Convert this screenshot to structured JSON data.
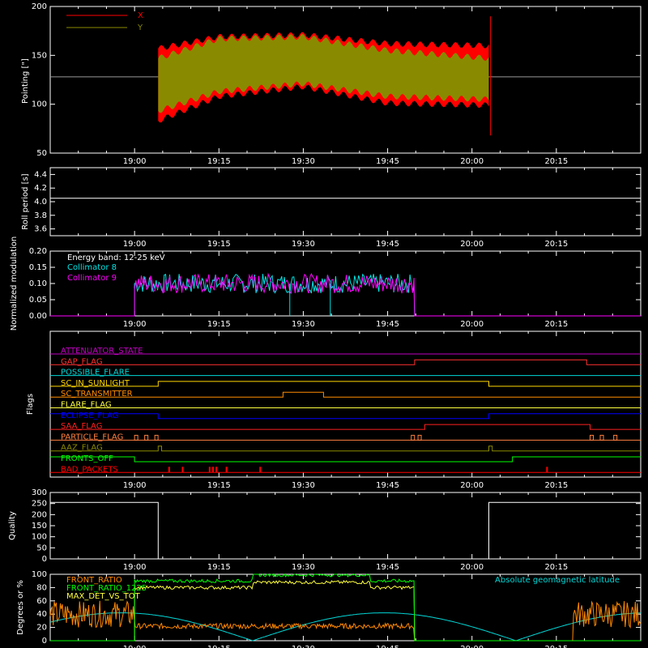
{
  "colors": {
    "background": "#000000",
    "frame": "#ffffff",
    "x_series": "#ff0000",
    "y_series": "#8a8a00",
    "collimator8": "#00e5e5",
    "collimator9": "#ff00ff",
    "attenuator": "#c000c0",
    "gap": "#ff3030",
    "possible_flare": "#00d8d8",
    "sc_in_sunlight": "#ffd700",
    "sc_transmitter": "#ff8c00",
    "flare_flag": "#ffff40",
    "eclipse": "#0000ff",
    "saa": "#ff2020",
    "particle": "#ff8040",
    "aaz": "#8a8a00",
    "fronts_off": "#00ff00",
    "bad_packets": "#ff0000",
    "front_ratio": "#ff8800",
    "front_ratio_1225": "#00ff00",
    "max_det": "#ffff40",
    "geomag": "#00d8d8"
  },
  "chart_data": [
    {
      "type": "line",
      "id": "pointing",
      "ylabel": "Pointing [\"]",
      "ylim": [
        50,
        200
      ],
      "y_ticks": [
        "50",
        "100",
        "150",
        "200"
      ],
      "x_ticks": [
        "19:00",
        "19:15",
        "19:30",
        "19:45",
        "20:00",
        "20:15"
      ],
      "legend": [
        {
          "name": "X",
          "color": "#ff0000"
        },
        {
          "name": "Y",
          "color": "#8a8a00"
        }
      ],
      "series": [
        {
          "name": "X",
          "envelope_upper": [
            [
              19.07,
              160
            ],
            [
              19.25,
              172
            ],
            [
              19.5,
              174
            ],
            [
              19.75,
              165
            ],
            [
              20.05,
              163
            ]
          ],
          "envelope_lower": [
            [
              19.07,
              80
            ],
            [
              19.25,
              105
            ],
            [
              19.5,
              115
            ],
            [
              19.75,
              98
            ],
            [
              20.05,
              96
            ]
          ]
        },
        {
          "name": "Y",
          "envelope_upper": [
            [
              19.07,
              150
            ],
            [
              19.25,
              170
            ],
            [
              19.5,
              172
            ],
            [
              19.75,
              158
            ],
            [
              20.05,
              150
            ]
          ],
          "envelope_lower": [
            [
              19.07,
              90
            ],
            [
              19.25,
              110
            ],
            [
              19.5,
              118
            ],
            [
              19.75,
              105
            ],
            [
              20.05,
              102
            ]
          ]
        }
      ],
      "reference_line": 128
    },
    {
      "type": "line",
      "id": "roll",
      "ylabel": "Roll period [s]",
      "ylim": [
        3.5,
        4.5
      ],
      "y_ticks": [
        "3.6",
        "3.8",
        "4.0",
        "4.2",
        "4.4"
      ],
      "x_ticks": [
        "19:00",
        "19:15",
        "19:30",
        "19:45",
        "20:00",
        "20:15"
      ],
      "values_constant": 4.05
    },
    {
      "type": "line",
      "id": "modulation",
      "ylabel": "Normalized modulation",
      "ylim": [
        0,
        0.2
      ],
      "y_ticks": [
        "0.00",
        "0.05",
        "0.10",
        "0.15",
        "0.20"
      ],
      "x_ticks": [
        "19:00",
        "19:15",
        "19:30",
        "19:45",
        "20:00",
        "20:15"
      ],
      "annotations": [
        "Energy band: 12-25 keV"
      ],
      "series": [
        {
          "name": "Collimator 8",
          "mean": 0.1,
          "start": 19.0,
          "end": 19.83
        },
        {
          "name": "Collimator 9",
          "mean": 0.1,
          "start": 19.0,
          "end": 19.83
        }
      ]
    },
    {
      "type": "line",
      "id": "flags",
      "ylabel": "Flags",
      "x_ticks": [
        "19:00",
        "19:15",
        "19:30",
        "19:45",
        "20:00",
        "20:15"
      ],
      "flags": [
        {
          "name": "ATTENUATOR_STATE",
          "color": "#c000c0"
        },
        {
          "name": "GAP_FLAG",
          "color": "#ff3030"
        },
        {
          "name": "POSSIBLE_FLARE",
          "color": "#00d8d8"
        },
        {
          "name": "SC_IN_SUNLIGHT",
          "color": "#ffd700"
        },
        {
          "name": "SC_TRANSMITTER",
          "color": "#ff8c00"
        },
        {
          "name": "FLARE_FLAG",
          "color": "#ffff40"
        },
        {
          "name": "ECLIPSE_FLAG",
          "color": "#0000ff"
        },
        {
          "name": "SAA_FLAG",
          "color": "#ff2020"
        },
        {
          "name": "PARTICLE_FLAG",
          "color": "#ff8040"
        },
        {
          "name": "AAZ_FLAG",
          "color": "#8a8a00"
        },
        {
          "name": "FRONTS_OFF",
          "color": "#00ff00"
        },
        {
          "name": "BAD_PACKETS",
          "color": "#ff0000"
        }
      ]
    },
    {
      "type": "line",
      "id": "quality",
      "ylabel": "Quality",
      "ylim": [
        0,
        300
      ],
      "y_ticks": [
        "0",
        "50",
        "100",
        "150",
        "200",
        "250",
        "300"
      ],
      "x_ticks": [
        "19:00",
        "19:15",
        "19:30",
        "19:45",
        "20:00",
        "20:15"
      ],
      "series": [
        {
          "name": "Quality",
          "points": [
            [
              18.75,
              255
            ],
            [
              19.07,
              255
            ],
            [
              19.07,
              0
            ],
            [
              20.05,
              0
            ],
            [
              20.05,
              255
            ],
            [
              20.5,
              255
            ]
          ]
        }
      ]
    },
    {
      "type": "line",
      "id": "ratios",
      "ylabel": "Degrees or %",
      "ylim": [
        0,
        100
      ],
      "y_ticks": [
        "0",
        "20",
        "40",
        "60",
        "80",
        "100"
      ],
      "x_ticks": [
        "19:00",
        "19:15",
        "19:30",
        "19:45",
        "20:00",
        "20:15"
      ],
      "legend": [
        {
          "name": "FRONT_RATIO",
          "color": "#ff8800"
        },
        {
          "name": "FRONT_RATIO_1225",
          "color": "#00ff00"
        },
        {
          "name": "MAX_DET_VS_TOT",
          "color": "#ffff40"
        },
        {
          "name": "Absolute geomagnetic latitude",
          "color": "#00d8d8"
        }
      ],
      "series": [
        {
          "name": "FRONT_RATIO",
          "mean": 22
        },
        {
          "name": "FRONT_RATIO_1225",
          "mean": 90
        },
        {
          "name": "MAX_DET_VS_TOT",
          "mean": 80
        },
        {
          "name": "Absolute geomagnetic latitude",
          "max": 42
        }
      ]
    }
  ]
}
